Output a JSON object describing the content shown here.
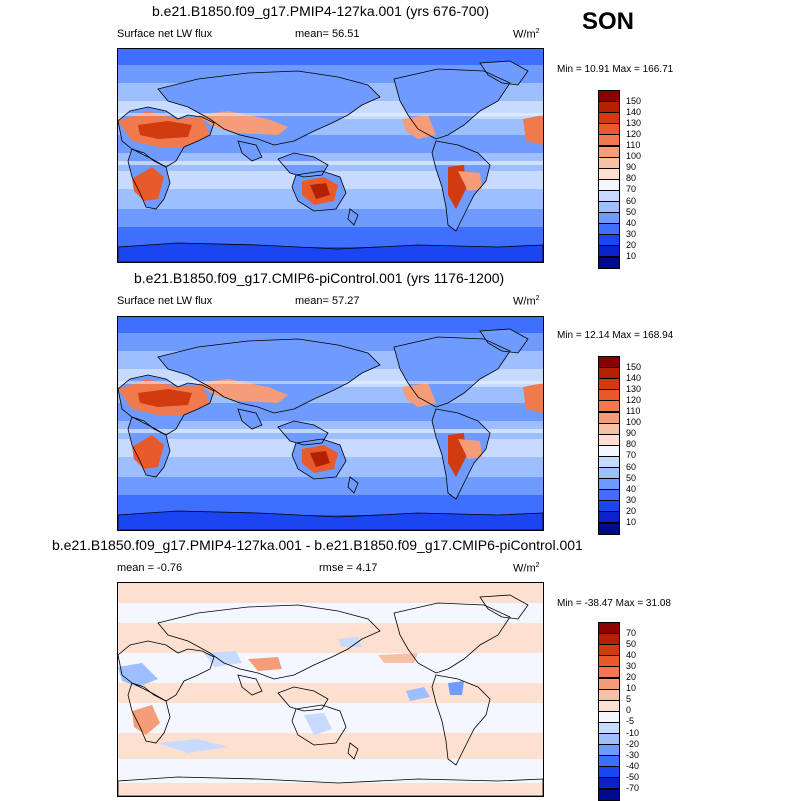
{
  "season": "SON",
  "panels": [
    {
      "title": "b.e21.B1850.f09_g17.PMIP4-127ka.001 (yrs 676-700)",
      "variable": "Surface net LW flux",
      "stat1": "mean=  56.51",
      "stat2": "",
      "units": "W/m",
      "units_sup": "2",
      "minmax": "Min =  10.91 Max = 166.71",
      "colorbar": {
        "labels": [
          "150",
          "140",
          "130",
          "120",
          "110",
          "100",
          "90",
          "80",
          "70",
          "60",
          "50",
          "40",
          "30",
          "20",
          "10"
        ],
        "colors": [
          "#8b0000",
          "#b22200",
          "#d23a10",
          "#e85a2a",
          "#f07a4e",
          "#f59d78",
          "#f8c0a4",
          "#fde0d0",
          "#f4f7ff",
          "#c6dbff",
          "#9dbfff",
          "#6f9bff",
          "#3f6fff",
          "#1a45f0",
          "#0a22c8",
          "#000a8c"
        ]
      },
      "type": "field"
    },
    {
      "title": "b.e21.B1850.f09_g17.CMIP6-piControl.001 (yrs 1176-1200)",
      "variable": "Surface net LW flux",
      "stat1": "mean=  57.27",
      "stat2": "",
      "units": "W/m",
      "units_sup": "2",
      "minmax": "Min =  12.14 Max = 168.94",
      "colorbar": {
        "labels": [
          "150",
          "140",
          "130",
          "120",
          "110",
          "100",
          "90",
          "80",
          "70",
          "60",
          "50",
          "40",
          "30",
          "20",
          "10"
        ],
        "colors": [
          "#8b0000",
          "#b22200",
          "#d23a10",
          "#e85a2a",
          "#f07a4e",
          "#f59d78",
          "#f8c0a4",
          "#fde0d0",
          "#f4f7ff",
          "#c6dbff",
          "#9dbfff",
          "#6f9bff",
          "#3f6fff",
          "#1a45f0",
          "#0a22c8",
          "#000a8c"
        ]
      },
      "type": "field"
    },
    {
      "title": "b.e21.B1850.f09_g17.PMIP4-127ka.001 - b.e21.B1850.f09_g17.CMIP6-piControl.001",
      "variable": "",
      "stat1": "mean =  -0.76",
      "stat2": "rmse =   4.17",
      "units": "W/m",
      "units_sup": "2",
      "minmax": "Min = -38.47 Max =  31.08",
      "colorbar": {
        "labels": [
          "70",
          "50",
          "40",
          "30",
          "20",
          "10",
          "5",
          "0",
          "-5",
          "-10",
          "-20",
          "-30",
          "-40",
          "-50",
          "-70"
        ],
        "colors": [
          "#8b0000",
          "#b22200",
          "#d23a10",
          "#e85a2a",
          "#f07a4e",
          "#f59d78",
          "#f8c0a4",
          "#fde0d0",
          "#f4f7ff",
          "#c6dbff",
          "#9dbfff",
          "#6f9bff",
          "#3f6fff",
          "#1a45f0",
          "#0a22c8",
          "#000a8c"
        ]
      },
      "type": "diff"
    }
  ]
}
